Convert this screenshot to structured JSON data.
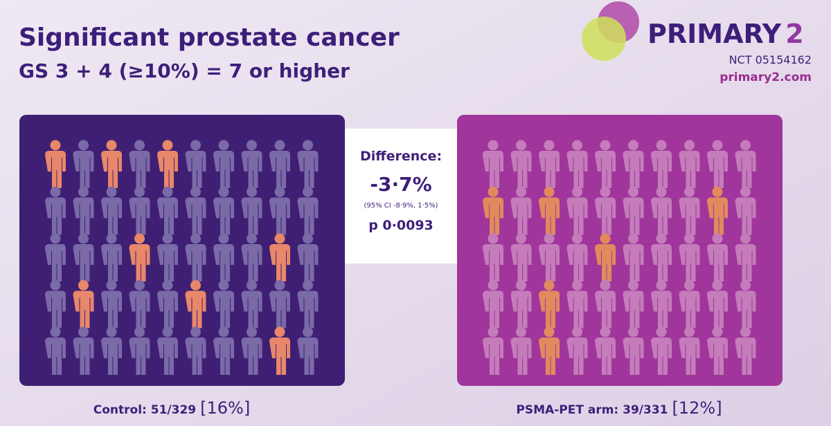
{
  "header": {
    "title": "Significant prostate cancer",
    "subtitle": "GS 3 + 4 (≥10%) = 7 or higher"
  },
  "logo": {
    "name": "PRIMARY",
    "number": "2",
    "trial_id": "NCT 05154162",
    "website": "primary2.com"
  },
  "difference": {
    "label": "Difference:",
    "value": "-3·7%",
    "ci": "(95% CI -8·9%, 1·5%)",
    "p": "p 0·0093"
  },
  "panels": [
    {
      "label": "Control: 51/329",
      "percent": "[16%]",
      "grid": [
        [
          1,
          0,
          1,
          0,
          1,
          0,
          0,
          0,
          0,
          0
        ],
        [
          0,
          0,
          0,
          0,
          0,
          0,
          0,
          0,
          0,
          0
        ],
        [
          0,
          0,
          0,
          1,
          0,
          0,
          0,
          0,
          1,
          0
        ],
        [
          0,
          1,
          0,
          0,
          0,
          1,
          0,
          0,
          0,
          0
        ],
        [
          0,
          0,
          0,
          0,
          0,
          0,
          0,
          0,
          1,
          0
        ]
      ]
    },
    {
      "label": "PSMA-PET arm: 39/331",
      "percent": "[12%]",
      "grid": [
        [
          0,
          0,
          0,
          0,
          0,
          0,
          0,
          0,
          0,
          0
        ],
        [
          1,
          0,
          1,
          0,
          0,
          0,
          0,
          0,
          1,
          0
        ],
        [
          0,
          0,
          0,
          0,
          1,
          0,
          0,
          0,
          0,
          0
        ],
        [
          0,
          0,
          1,
          0,
          0,
          0,
          0,
          0,
          0,
          0
        ],
        [
          0,
          0,
          1,
          0,
          0,
          0,
          0,
          0,
          0,
          0
        ]
      ]
    }
  ]
}
